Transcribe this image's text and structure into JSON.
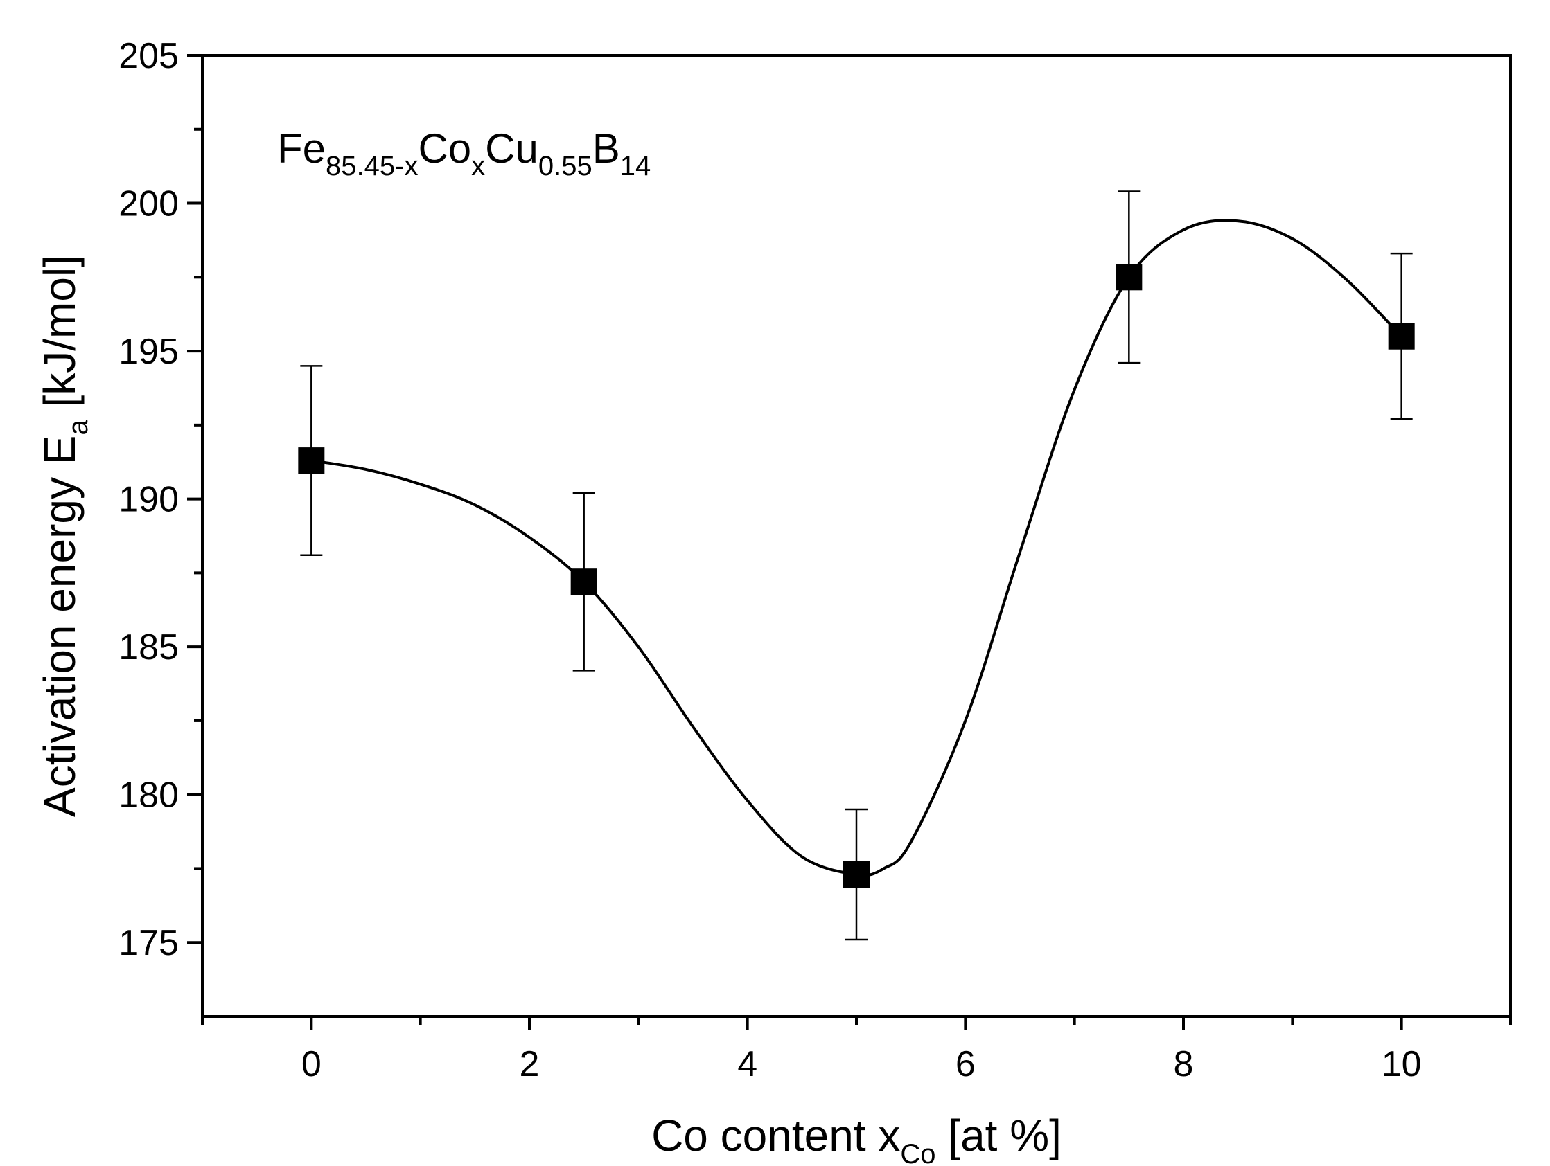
{
  "chart_data": {
    "type": "scatter",
    "title": "",
    "annotation": {
      "parts": [
        {
          "text": "Fe",
          "sub": false
        },
        {
          "text": "85.45-x",
          "sub": true
        },
        {
          "text": "Co",
          "sub": false
        },
        {
          "text": "x",
          "sub": true
        },
        {
          "text": "Cu",
          "sub": false
        },
        {
          "text": "0.55",
          "sub": true
        },
        {
          "text": "B",
          "sub": false
        },
        {
          "text": "14",
          "sub": true
        }
      ]
    },
    "xlabel": {
      "main": "Co content x",
      "sub": "Co",
      "tail": " [at %]"
    },
    "ylabel": {
      "main": "Activation energy E",
      "sub": "a",
      "tail": " [kJ/mol]"
    },
    "xlim": [
      -1,
      11
    ],
    "ylim": [
      172.5,
      205
    ],
    "x_ticks": [
      0,
      2,
      4,
      6,
      8,
      10
    ],
    "x_minor_ticks": [
      -1,
      1,
      3,
      5,
      7,
      9,
      11
    ],
    "y_ticks": [
      175,
      180,
      185,
      190,
      195,
      200,
      205
    ],
    "y_minor_ticks": [
      177.5,
      182.5,
      187.5,
      192.5,
      197.5,
      202.5
    ],
    "grid": false,
    "series": [
      {
        "marker": "square",
        "color": "#000000",
        "points": [
          {
            "x": 0,
            "y": 191.3,
            "err_low": 188.1,
            "err_high": 194.5
          },
          {
            "x": 2.5,
            "y": 187.2,
            "err_low": 184.2,
            "err_high": 190.2
          },
          {
            "x": 5,
            "y": 177.3,
            "err_low": 175.1,
            "err_high": 179.5
          },
          {
            "x": 7.5,
            "y": 197.5,
            "err_low": 194.6,
            "err_high": 200.4
          },
          {
            "x": 10,
            "y": 195.5,
            "err_low": 192.7,
            "err_high": 198.3
          }
        ]
      }
    ],
    "fit_curve": {
      "type": "smooth spline",
      "color": "#000000",
      "x": [
        0,
        0.5,
        1.0,
        1.5,
        2.0,
        2.5,
        3.0,
        3.5,
        4.0,
        4.5,
        5.0,
        5.25,
        5.5,
        6.0,
        6.5,
        7.0,
        7.5,
        8.0,
        8.5,
        9.0,
        9.5,
        10.0
      ],
      "y": [
        191.3,
        191.0,
        190.5,
        189.8,
        188.7,
        187.2,
        185.0,
        182.3,
        179.8,
        177.9,
        177.3,
        177.5,
        178.4,
        182.5,
        188.2,
        193.7,
        197.5,
        199.1,
        199.4,
        198.8,
        197.4,
        195.5
      ]
    }
  }
}
